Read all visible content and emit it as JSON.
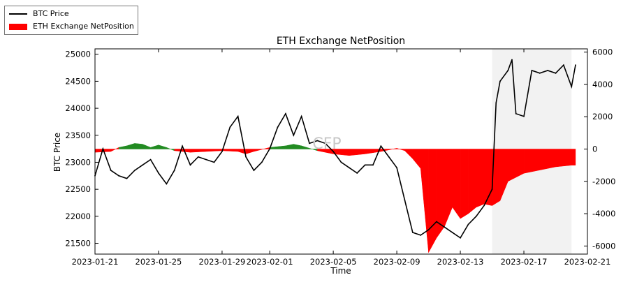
{
  "chart_data": {
    "type": "line",
    "title": "ETH Exchange NetPosition",
    "xlabel": "Time",
    "ylabel": "BTC Price",
    "ylabel_right": "",
    "x_ticks": [
      "2023-01-21",
      "2023-01-25",
      "2023-01-29",
      "2023-02-01",
      "2023-02-05",
      "2023-02-09",
      "2023-02-13",
      "2023-02-17",
      "2023-02-21"
    ],
    "xlim": [
      "2023-01-21",
      "2023-02-21"
    ],
    "ylim": [
      21300,
      25100
    ],
    "ylim_right": [
      -6500,
      6200
    ],
    "y_ticks": [
      21500,
      22000,
      22500,
      23000,
      23500,
      24000,
      24500,
      25000
    ],
    "y_ticks_right": [
      -6000,
      -4000,
      -2000,
      0,
      2000,
      4000,
      6000
    ],
    "grid": false,
    "legend_placement": "upper-left-outside",
    "watermark": "CFP",
    "shaded_region": [
      "2023-02-15",
      "2023-02-20"
    ],
    "series": [
      {
        "name": "BTC Price",
        "axis": "left",
        "color": "#000000",
        "points": [
          [
            "2023-01-21",
            22750
          ],
          [
            "2023-01-21 12:00",
            23250
          ],
          [
            "2023-01-22",
            22850
          ],
          [
            "2023-01-22 12:00",
            22750
          ],
          [
            "2023-01-23",
            22700
          ],
          [
            "2023-01-23 12:00",
            22850
          ],
          [
            "2023-01-24",
            22950
          ],
          [
            "2023-01-24 12:00",
            23050
          ],
          [
            "2023-01-25",
            22800
          ],
          [
            "2023-01-25 12:00",
            22600
          ],
          [
            "2023-01-26",
            22850
          ],
          [
            "2023-01-26 12:00",
            23300
          ],
          [
            "2023-01-27",
            22950
          ],
          [
            "2023-01-27 12:00",
            23100
          ],
          [
            "2023-01-28",
            23050
          ],
          [
            "2023-01-28 12:00",
            23000
          ],
          [
            "2023-01-29",
            23200
          ],
          [
            "2023-01-29 12:00",
            23650
          ],
          [
            "2023-01-30",
            23850
          ],
          [
            "2023-01-30 12:00",
            23100
          ],
          [
            "2023-01-31",
            22850
          ],
          [
            "2023-01-31 12:00",
            23000
          ],
          [
            "2023-02-01",
            23250
          ],
          [
            "2023-02-01 12:00",
            23650
          ],
          [
            "2023-02-02",
            23900
          ],
          [
            "2023-02-02 12:00",
            23500
          ],
          [
            "2023-02-03",
            23850
          ],
          [
            "2023-02-03 12:00",
            23350
          ],
          [
            "2023-02-04",
            23400
          ],
          [
            "2023-02-04 12:00",
            23350
          ],
          [
            "2023-02-05",
            23200
          ],
          [
            "2023-02-05 12:00",
            23000
          ],
          [
            "2023-02-06",
            22900
          ],
          [
            "2023-02-06 12:00",
            22800
          ],
          [
            "2023-02-07",
            22950
          ],
          [
            "2023-02-07 12:00",
            22950
          ],
          [
            "2023-02-08",
            23300
          ],
          [
            "2023-02-08 12:00",
            23100
          ],
          [
            "2023-02-09",
            22900
          ],
          [
            "2023-02-09 12:00",
            22300
          ],
          [
            "2023-02-10",
            21700
          ],
          [
            "2023-02-10 12:00",
            21650
          ],
          [
            "2023-02-11",
            21750
          ],
          [
            "2023-02-11 12:00",
            21900
          ],
          [
            "2023-02-12",
            21800
          ],
          [
            "2023-02-12 12:00",
            21700
          ],
          [
            "2023-02-13",
            21600
          ],
          [
            "2023-02-13 12:00",
            21850
          ],
          [
            "2023-02-14",
            22000
          ],
          [
            "2023-02-14 12:00",
            22200
          ],
          [
            "2023-02-15",
            22500
          ],
          [
            "2023-02-15 06:00",
            24100
          ],
          [
            "2023-02-15 12:00",
            24500
          ],
          [
            "2023-02-16",
            24700
          ],
          [
            "2023-02-16 06:00",
            24900
          ],
          [
            "2023-02-16 12:00",
            23900
          ],
          [
            "2023-02-17",
            23850
          ],
          [
            "2023-02-17 12:00",
            24700
          ],
          [
            "2023-02-18",
            24650
          ],
          [
            "2023-02-18 12:00",
            24700
          ],
          [
            "2023-02-19",
            24650
          ],
          [
            "2023-02-19 12:00",
            24800
          ],
          [
            "2023-02-20",
            24400
          ],
          [
            "2023-02-20 06:00",
            24800
          ]
        ]
      },
      {
        "name": "ETH Exchange NetPosition",
        "axis": "right",
        "type": "area",
        "color_negative": "#ff0000",
        "color_positive": "#228b22",
        "points": [
          [
            "2023-01-21",
            -200
          ],
          [
            "2023-01-22",
            -150
          ],
          [
            "2023-01-22 12:00",
            100
          ],
          [
            "2023-01-23",
            200
          ],
          [
            "2023-01-23 12:00",
            350
          ],
          [
            "2023-01-24",
            300
          ],
          [
            "2023-01-24 12:00",
            100
          ],
          [
            "2023-01-25",
            250
          ],
          [
            "2023-01-25 12:00",
            100
          ],
          [
            "2023-01-26",
            -100
          ],
          [
            "2023-01-27",
            -200
          ],
          [
            "2023-01-28",
            -150
          ],
          [
            "2023-01-29",
            -100
          ],
          [
            "2023-01-30",
            -150
          ],
          [
            "2023-01-30 12:00",
            -300
          ],
          [
            "2023-01-31",
            -150
          ],
          [
            "2023-02-01",
            100
          ],
          [
            "2023-02-02",
            200
          ],
          [
            "2023-02-02 12:00",
            300
          ],
          [
            "2023-02-03",
            200
          ],
          [
            "2023-02-04",
            -100
          ],
          [
            "2023-02-05",
            -300
          ],
          [
            "2023-02-06",
            -400
          ],
          [
            "2023-02-07",
            -300
          ],
          [
            "2023-02-08",
            -150
          ],
          [
            "2023-02-09",
            50
          ],
          [
            "2023-02-09 12:00",
            -100
          ],
          [
            "2023-02-10",
            -600
          ],
          [
            "2023-02-10 12:00",
            -1200
          ],
          [
            "2023-02-11",
            -6400
          ],
          [
            "2023-02-11 12:00",
            -5500
          ],
          [
            "2023-02-12",
            -4800
          ],
          [
            "2023-02-12 12:00",
            -3600
          ],
          [
            "2023-02-13",
            -4300
          ],
          [
            "2023-02-13 12:00",
            -4000
          ],
          [
            "2023-02-14",
            -3600
          ],
          [
            "2023-02-14 12:00",
            -3400
          ],
          [
            "2023-02-15",
            -3500
          ],
          [
            "2023-02-15 12:00",
            -3200
          ],
          [
            "2023-02-16",
            -2000
          ],
          [
            "2023-02-17",
            -1500
          ],
          [
            "2023-02-18",
            -1300
          ],
          [
            "2023-02-19",
            -1100
          ],
          [
            "2023-02-20",
            -1000
          ],
          [
            "2023-02-20 06:00",
            -1000
          ]
        ]
      }
    ]
  },
  "legend": {
    "items": [
      {
        "label": "BTC Price",
        "kind": "line",
        "color": "#000000"
      },
      {
        "label": "ETH Exchange NetPosition",
        "kind": "rect",
        "color": "#ff0000"
      }
    ]
  }
}
